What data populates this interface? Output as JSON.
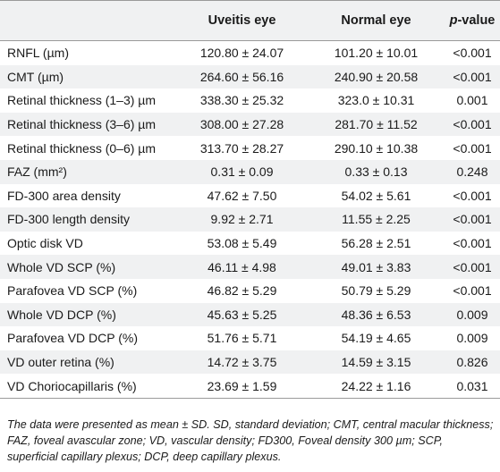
{
  "table": {
    "headers": [
      "",
      "Uveitis eye",
      "Normal eye",
      "value"
    ],
    "p_prefix": "p",
    "p_suffix": "-value",
    "rows": [
      {
        "label": "RNFL (µm)",
        "uveitis": "120.80 ± 24.07",
        "normal": "101.20 ± 10.01",
        "p": "<0.001"
      },
      {
        "label": "CMT (µm)",
        "uveitis": "264.60 ± 56.16",
        "normal": "240.90 ± 20.58",
        "p": "<0.001"
      },
      {
        "label": "Retinal thickness (1–3) µm",
        "uveitis": "338.30 ± 25.32",
        "normal": "323.0 ± 10.31",
        "p": "0.001"
      },
      {
        "label": "Retinal thickness (3–6) µm",
        "uveitis": "308.00 ± 27.28",
        "normal": "281.70 ± 11.52",
        "p": "<0.001"
      },
      {
        "label": "Retinal thickness (0–6) µm",
        "uveitis": "313.70 ± 28.27",
        "normal": "290.10 ± 10.38",
        "p": "<0.001"
      },
      {
        "label": "FAZ (mm²)",
        "uveitis": "0.31 ± 0.09",
        "normal": "0.33 ± 0.13",
        "p": "0.248"
      },
      {
        "label": "FD-300 area density",
        "uveitis": "47.62 ± 7.50",
        "normal": "54.02 ± 5.61",
        "p": "<0.001"
      },
      {
        "label": "FD-300 length density",
        "uveitis": "9.92 ± 2.71",
        "normal": "11.55 ± 2.25",
        "p": "<0.001"
      },
      {
        "label": "Optic disk VD",
        "uveitis": "53.08 ± 5.49",
        "normal": "56.28 ± 2.51",
        "p": "<0.001"
      },
      {
        "label": "Whole VD SCP (%)",
        "uveitis": "46.11 ± 4.98",
        "normal": "49.01 ± 3.83",
        "p": "<0.001"
      },
      {
        "label": "Parafovea VD SCP (%)",
        "uveitis": "46.82 ± 5.29",
        "normal": "50.79 ± 5.29",
        "p": "<0.001"
      },
      {
        "label": "Whole VD DCP (%)",
        "uveitis": "45.63 ± 5.25",
        "normal": "48.36 ± 6.53",
        "p": "0.009"
      },
      {
        "label": "Parafovea VD DCP (%)",
        "uveitis": "51.76 ± 5.71",
        "normal": "54.19 ± 4.65",
        "p": "0.009"
      },
      {
        "label": "VD outer retina (%)",
        "uveitis": "14.72 ± 3.75",
        "normal": "14.59 ± 3.15",
        "p": "0.826"
      },
      {
        "label": "VD Choriocapillaris (%)",
        "uveitis": "23.69 ± 1.59",
        "normal": "24.22 ± 1.16",
        "p": "0.031"
      }
    ]
  },
  "footnote": "The data were presented as mean ± SD. SD, standard deviation; CMT, central macular thickness; FAZ, foveal avascular zone; VD, vascular density; FD300, Foveal density 300 µm; SCP, superficial capillary plexus; DCP, deep capillary plexus."
}
